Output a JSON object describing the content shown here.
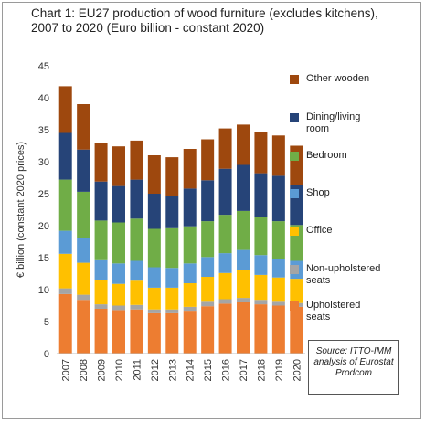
{
  "chart_data": {
    "type": "bar",
    "stacked": true,
    "title": "Chart 1: EU27 production of wood furniture (excludes kitchens), 2007 to 2020 (Euro billion - constant 2020)",
    "ylabel": "€ billion (constant 2020 prices)",
    "xlabel": "",
    "ylim": [
      0,
      45
    ],
    "yticks": [
      "0",
      "5",
      "10",
      "15",
      "20",
      "25",
      "30",
      "35",
      "40",
      "45"
    ],
    "grid": false,
    "legend_position": "right",
    "categories": [
      "2007",
      "2008",
      "2009",
      "2010",
      "2011",
      "2012",
      "2013",
      "2014",
      "2015",
      "2016",
      "2017",
      "2018",
      "2019",
      "2020"
    ],
    "series": [
      {
        "name": "Upholstered seats",
        "color": "#ED7D31",
        "values": [
          9.3,
          8.4,
          7.0,
          6.8,
          6.9,
          6.3,
          6.3,
          6.7,
          7.4,
          7.8,
          8.0,
          7.7,
          7.5,
          7.3
        ]
      },
      {
        "name": "Non-upholstered seats",
        "color": "#A5A5A5",
        "values": [
          0.9,
          0.8,
          0.7,
          0.7,
          0.7,
          0.6,
          0.6,
          0.6,
          0.7,
          0.7,
          0.7,
          0.7,
          0.6,
          0.6
        ]
      },
      {
        "name": "Office",
        "color": "#FFC000",
        "values": [
          5.4,
          5.0,
          3.8,
          3.4,
          3.8,
          3.4,
          3.4,
          3.7,
          3.9,
          4.1,
          4.4,
          3.9,
          3.8,
          3.8
        ]
      },
      {
        "name": "Shop",
        "color": "#5B9BD5",
        "values": [
          3.6,
          3.8,
          3.1,
          3.2,
          3.1,
          3.2,
          3.1,
          3.1,
          3.1,
          3.1,
          3.1,
          3.1,
          2.9,
          2.8
        ]
      },
      {
        "name": "Bedroom",
        "color": "#70AD47",
        "values": [
          8.0,
          7.3,
          6.2,
          6.4,
          6.6,
          6.0,
          6.2,
          5.8,
          5.6,
          6.0,
          6.1,
          5.9,
          5.9,
          5.6
        ]
      },
      {
        "name": "Dining/living room",
        "color": "#264478",
        "values": [
          7.3,
          6.6,
          6.1,
          5.7,
          6.1,
          5.5,
          5.0,
          5.9,
          6.4,
          7.2,
          7.2,
          6.9,
          7.1,
          6.3
        ]
      },
      {
        "name": "Other wooden",
        "color": "#9E480E",
        "values": [
          7.3,
          7.1,
          6.1,
          6.2,
          6.1,
          6.0,
          6.1,
          6.2,
          6.4,
          6.3,
          6.3,
          6.5,
          6.3,
          6.1
        ]
      }
    ],
    "legend_order": [
      "Other wooden",
      "Dining/living room",
      "Bedroom",
      "Shop",
      "Office",
      "Non-upholstered seats",
      "Upholstered seats"
    ]
  },
  "legend_labels": {
    "other_wooden": "Other wooden",
    "dining": "Dining/living room",
    "bedroom": "Bedroom",
    "shop": "Shop",
    "office": "Office",
    "non_upholstered": "Non-upholstered seats",
    "upholstered": "Upholstered seats"
  },
  "source_note": "Source: ITTO-IMM analysis of Eurostat Prodcom"
}
